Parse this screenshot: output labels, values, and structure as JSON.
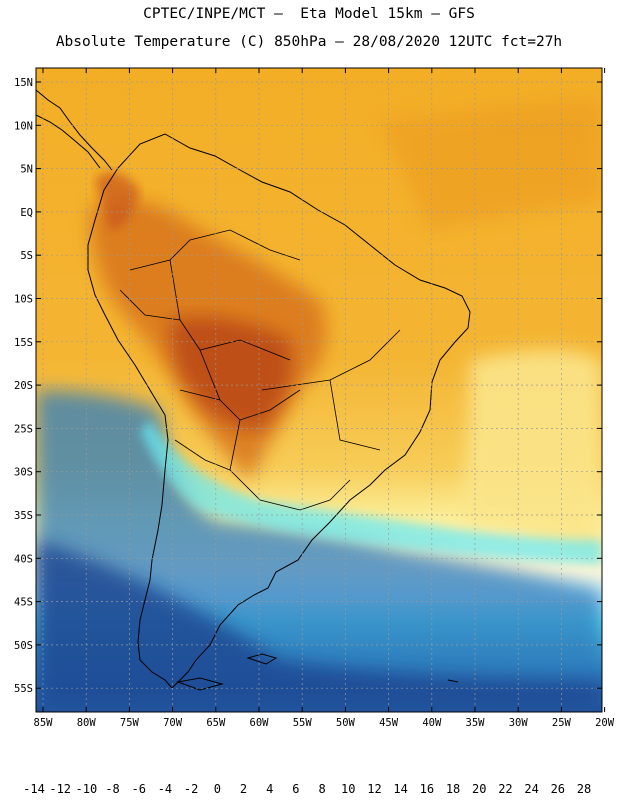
{
  "title_line1": "CPTEC/INPE/MCT —  Eta Model 15km — GFS",
  "title_line2": "Absolute Temperature (C) 850hPa — 28/08/2020 12UTC fct=27h",
  "lat_labels": [
    "15N",
    "10N",
    "5N",
    "EQ",
    "5S",
    "10S",
    "15S",
    "20S",
    "25S",
    "30S",
    "35S",
    "40S",
    "45S",
    "50S",
    "55S"
  ],
  "lon_labels": [
    "85W",
    "80W",
    "75W",
    "70W",
    "65W",
    "60W",
    "55W",
    "50W",
    "45W",
    "40W",
    "35W",
    "30W",
    "25W",
    "20W"
  ],
  "colorbar": {
    "colors": [
      "#1c3f8f",
      "#2555a0",
      "#2c6eb0",
      "#3384c0",
      "#3b9bc9",
      "#44b0d4",
      "#4fc6e0",
      "#5cdcec",
      "#5ff5ff",
      "#d2f7ff",
      "#fff8e6",
      "#fff5a0",
      "#ffe46e",
      "#fcd34d",
      "#f6bc2e",
      "#f0a815",
      "#ea8a13",
      "#e06a0c",
      "#cc4c08",
      "#b23508",
      "#942409",
      "#7a1b0b",
      "#8c0a2c"
    ],
    "labels": [
      "-14",
      "-12",
      "-10",
      "-8",
      "-6",
      "-4",
      "-2",
      "0",
      "2",
      "4",
      "6",
      "8",
      "10",
      "12",
      "14",
      "16",
      "18",
      "20",
      "22",
      "24",
      "26",
      "28"
    ]
  },
  "colors": {
    "background": "#ffffff",
    "ocean_warm": "#f2ad24",
    "land_hot": "#c7551c",
    "ocean_cold": "#2d6fb4",
    "grid": "#888888"
  }
}
